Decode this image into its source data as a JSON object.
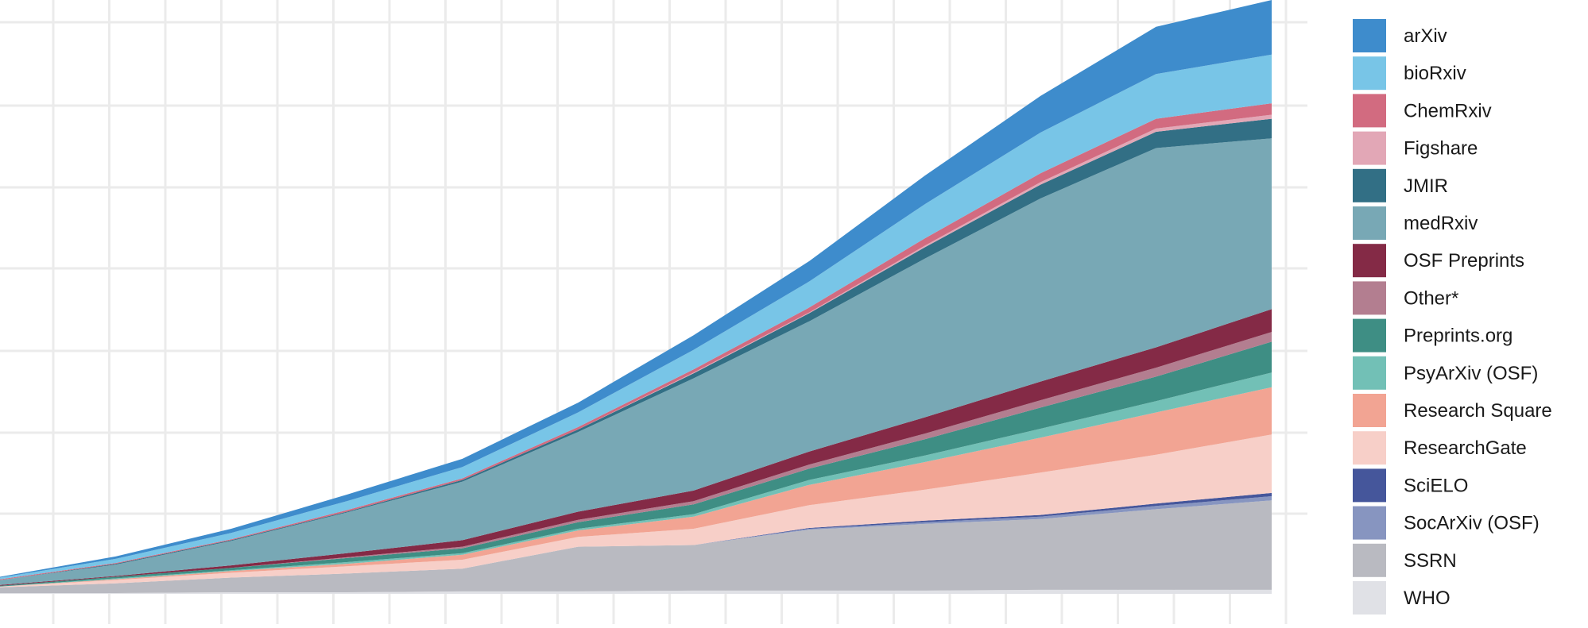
{
  "chart_data": {
    "type": "area",
    "stacked": true,
    "title": "",
    "xlabel": "",
    "ylabel": "",
    "x": [
      0,
      2,
      4,
      6,
      8,
      10,
      12,
      14,
      16,
      18,
      20,
      22
    ],
    "ylim": [
      0,
      730
    ],
    "grid": true,
    "legend_position": "right",
    "series": [
      {
        "name": "WHO",
        "color": "#e0e1e6",
        "values": [
          1,
          1,
          2,
          2,
          3,
          3,
          4,
          4,
          4,
          5,
          5,
          5
        ]
      },
      {
        "name": "SSRN",
        "color": "#b9bac1",
        "values": [
          7,
          12,
          18,
          23,
          28,
          55,
          56,
          75,
          82,
          87,
          99,
          110
        ]
      },
      {
        "name": "SocArXiv (OSF)",
        "color": "#8795c0",
        "values": [
          0,
          0,
          0,
          0,
          0,
          0,
          0,
          1,
          2,
          3,
          4,
          5
        ]
      },
      {
        "name": "SciELO",
        "color": "#45569b",
        "values": [
          0,
          0,
          0,
          0,
          0,
          0,
          0,
          1,
          2,
          2,
          3,
          4
        ]
      },
      {
        "name": "ResearchGate",
        "color": "#f7cfc8",
        "values": [
          1,
          4,
          6,
          9,
          11,
          12,
          20,
          28,
          38,
          52,
          60,
          72
        ]
      },
      {
        "name": "Research Square",
        "color": "#f2a493",
        "values": [
          0,
          1,
          2,
          3,
          6,
          8,
          15,
          25,
          34,
          43,
          52,
          58
        ]
      },
      {
        "name": "PsyArXiv (OSF)",
        "color": "#72c0b6",
        "values": [
          0,
          1,
          1,
          2,
          2,
          2,
          3,
          6,
          8,
          11,
          14,
          18
        ]
      },
      {
        "name": "Preprints.org",
        "color": "#3e8e84",
        "values": [
          1,
          2,
          3,
          5,
          6,
          8,
          12,
          14,
          20,
          26,
          30,
          38
        ]
      },
      {
        "name": "Other*",
        "color": "#b37e90",
        "values": [
          0,
          0,
          0,
          1,
          2,
          3,
          4,
          5,
          7,
          9,
          11,
          12
        ]
      },
      {
        "name": "OSF Preprints",
        "color": "#842a46",
        "values": [
          1,
          1,
          3,
          5,
          8,
          10,
          13,
          16,
          20,
          23,
          25,
          28
        ]
      },
      {
        "name": "medRxiv",
        "color": "#78a8b5",
        "values": [
          6,
          14,
          30,
          50,
          72,
          98,
          138,
          160,
          195,
          225,
          245,
          210
        ]
      },
      {
        "name": "JMIR",
        "color": "#326f85",
        "values": [
          0,
          1,
          1,
          1,
          2,
          3,
          6,
          10,
          14,
          17,
          20,
          24
        ]
      },
      {
        "name": "Figshare",
        "color": "#e2a7b6",
        "values": [
          0,
          0,
          0,
          0,
          0,
          0,
          1,
          1,
          2,
          3,
          4,
          5
        ]
      },
      {
        "name": "ChemRxiv",
        "color": "#d26b80",
        "values": [
          1,
          1,
          1,
          2,
          2,
          3,
          4,
          6,
          9,
          11,
          12,
          14
        ]
      },
      {
        "name": "bioRxiv",
        "color": "#78c5e7",
        "values": [
          2,
          5,
          8,
          11,
          14,
          18,
          24,
          32,
          42,
          50,
          55,
          60
        ]
      },
      {
        "name": "arXiv",
        "color": "#3e8ccc",
        "values": [
          1,
          3,
          5,
          8,
          10,
          12,
          18,
          25,
          35,
          45,
          58,
          67
        ]
      }
    ]
  }
}
